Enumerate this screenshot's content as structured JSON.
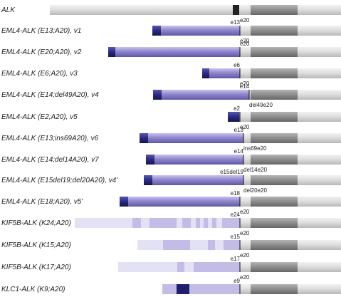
{
  "colors": {
    "alk_light": "#dcdcdc",
    "alk_dark": "#8c8c8c",
    "alk_black": "#222222",
    "fusion_mid": "#8f87cc",
    "fusion_dark": "#2a2a80",
    "kif_light": "#e3e1f4",
    "kif_mid": "#c2bce6",
    "klc_dark": "#1f1f6e"
  },
  "rows": [
    {
      "label": "ALK",
      "tags": [
        "e20"
      ]
    },
    {
      "label": "EML4-ALK (E13;A20), v1",
      "tags": [
        "e13",
        "e20"
      ]
    },
    {
      "label": "EML4-ALK (E20;A20), v2",
      "tags": [
        "e20"
      ]
    },
    {
      "label": "EML4-ALK (E6;A20), v3",
      "tags": [
        "e6",
        "e20"
      ]
    },
    {
      "label": "EML4-ALK (E14;del49A20), v4",
      "tags": [
        "e14",
        "del49e20"
      ]
    },
    {
      "label": "EML4-ALK (E2;A20), v5",
      "tags": [
        "e2",
        "e20"
      ]
    },
    {
      "label": "EML4-ALK (E13;ins69A20), v6",
      "tags": [
        "e13",
        "ins69e20"
      ]
    },
    {
      "label": "EML4-ALK (E14;del14A20), v7",
      "tags": [
        "e14",
        "del14e20"
      ]
    },
    {
      "label": "EML4-ALK (E15del19;del20A20), v4'",
      "tags": [
        "e15del19",
        "del20e20"
      ]
    },
    {
      "label": "EML4-ALK (E18;A20), v5'",
      "tags": [
        "e18",
        "e20"
      ]
    },
    {
      "label": "KIF5B-ALK (K24;A20)",
      "tags": [
        "e24",
        "e20"
      ]
    },
    {
      "label": "KIF5B-ALK (K15;A20)",
      "tags": [
        "e15",
        "e20"
      ]
    },
    {
      "label": "KIF5B-ALK (K17;A20)",
      "tags": [
        "e17",
        "e20"
      ]
    },
    {
      "label": "KLC1-ALK (K9;A20)",
      "tags": [
        "e9",
        "e20"
      ]
    }
  ]
}
